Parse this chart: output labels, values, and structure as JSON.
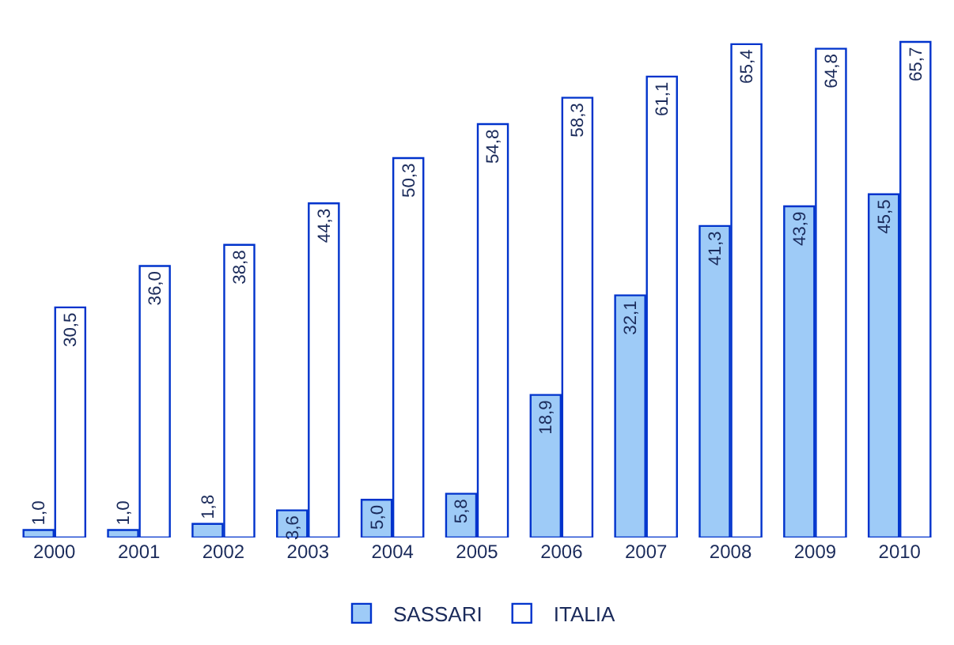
{
  "chart_data": {
    "type": "bar",
    "categories": [
      "2000",
      "2001",
      "2002",
      "2003",
      "2004",
      "2005",
      "2006",
      "2007",
      "2008",
      "2009",
      "2010"
    ],
    "series": [
      {
        "name": "SASSARI",
        "color": "#9ecbf7",
        "values": [
          1.0,
          1.0,
          1.8,
          3.6,
          5.0,
          5.8,
          18.9,
          32.1,
          41.3,
          43.9,
          45.5
        ],
        "value_labels": [
          "1,0",
          "1,0",
          "1,8",
          "3,6",
          "5,0",
          "5,8",
          "18,9",
          "32,1",
          "41,3",
          "43,9",
          "45,5"
        ]
      },
      {
        "name": "ITALIA",
        "color": "#ffffff",
        "values": [
          30.5,
          36.0,
          38.8,
          44.3,
          50.3,
          54.8,
          58.3,
          61.1,
          65.4,
          64.8,
          65.7
        ],
        "value_labels": [
          "30,5",
          "36,0",
          "38,8",
          "44,3",
          "50,3",
          "54,8",
          "58,3",
          "61,1",
          "65,4",
          "64,8",
          "65,7"
        ]
      }
    ],
    "legend": "bottom"
  }
}
